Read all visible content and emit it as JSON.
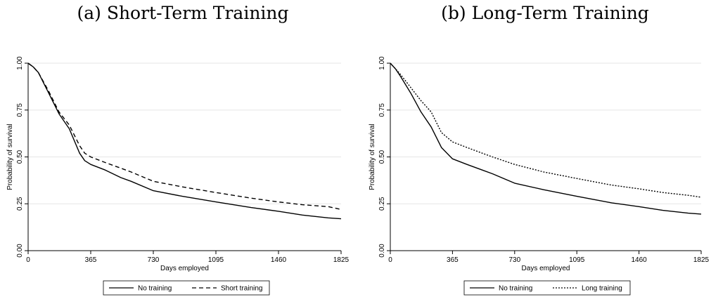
{
  "titles": {
    "a": "(a) Short-Term Training",
    "b": "(b) Long-Term Training"
  },
  "chart_data": [
    {
      "type": "line",
      "title": "(a) Short-Term Training",
      "xlabel": "Days employed",
      "ylabel": "Probability of survival",
      "xlim": [
        0,
        1825
      ],
      "ylim": [
        0,
        1
      ],
      "xticks": [
        "0",
        "365",
        "730",
        "1095",
        "1460",
        "1825"
      ],
      "yticks": [
        "0.00",
        "0.25",
        "0.50",
        "0.75",
        "1.00"
      ],
      "grid": "horizontal",
      "legend": "bottom",
      "series": [
        {
          "name": "No training",
          "style": "solid",
          "x": [
            0,
            30,
            60,
            120,
            180,
            240,
            300,
            330,
            365,
            450,
            540,
            600,
            730,
            900,
            1095,
            1300,
            1460,
            1600,
            1750,
            1825
          ],
          "y": [
            1.0,
            0.98,
            0.95,
            0.84,
            0.73,
            0.65,
            0.52,
            0.48,
            0.46,
            0.43,
            0.39,
            0.37,
            0.32,
            0.29,
            0.26,
            0.23,
            0.21,
            0.19,
            0.175,
            0.17
          ]
        },
        {
          "name": "Short training",
          "style": "dashed",
          "x": [
            0,
            30,
            60,
            120,
            180,
            240,
            300,
            330,
            365,
            450,
            540,
            600,
            730,
            900,
            1095,
            1300,
            1460,
            1600,
            1750,
            1825
          ],
          "y": [
            1.0,
            0.98,
            0.95,
            0.85,
            0.74,
            0.67,
            0.56,
            0.52,
            0.5,
            0.47,
            0.44,
            0.42,
            0.37,
            0.34,
            0.31,
            0.28,
            0.26,
            0.245,
            0.235,
            0.22
          ]
        }
      ]
    },
    {
      "type": "line",
      "title": "(b) Long-Term Training",
      "xlabel": "Days employed",
      "ylabel": "Probability of survival",
      "xlim": [
        0,
        1825
      ],
      "ylim": [
        0,
        1
      ],
      "xticks": [
        "0",
        "365",
        "730",
        "1095",
        "1460",
        "1825"
      ],
      "yticks": [
        "0.00",
        "0.25",
        "0.50",
        "0.75",
        "1.00"
      ],
      "grid": "horizontal",
      "legend": "bottom",
      "series": [
        {
          "name": "No training",
          "style": "solid",
          "x": [
            0,
            30,
            60,
            120,
            180,
            240,
            300,
            365,
            450,
            540,
            600,
            730,
            900,
            1095,
            1300,
            1460,
            1600,
            1750,
            1825
          ],
          "y": [
            1.0,
            0.97,
            0.93,
            0.84,
            0.74,
            0.66,
            0.55,
            0.49,
            0.46,
            0.43,
            0.41,
            0.36,
            0.325,
            0.29,
            0.255,
            0.235,
            0.215,
            0.2,
            0.195
          ]
        },
        {
          "name": "Long training",
          "style": "dotted",
          "x": [
            0,
            30,
            60,
            120,
            180,
            240,
            300,
            365,
            450,
            540,
            600,
            730,
            900,
            1095,
            1300,
            1460,
            1600,
            1750,
            1825
          ],
          "y": [
            1.0,
            0.97,
            0.94,
            0.87,
            0.8,
            0.74,
            0.63,
            0.58,
            0.55,
            0.52,
            0.5,
            0.46,
            0.42,
            0.385,
            0.35,
            0.33,
            0.31,
            0.295,
            0.285
          ]
        }
      ]
    }
  ]
}
